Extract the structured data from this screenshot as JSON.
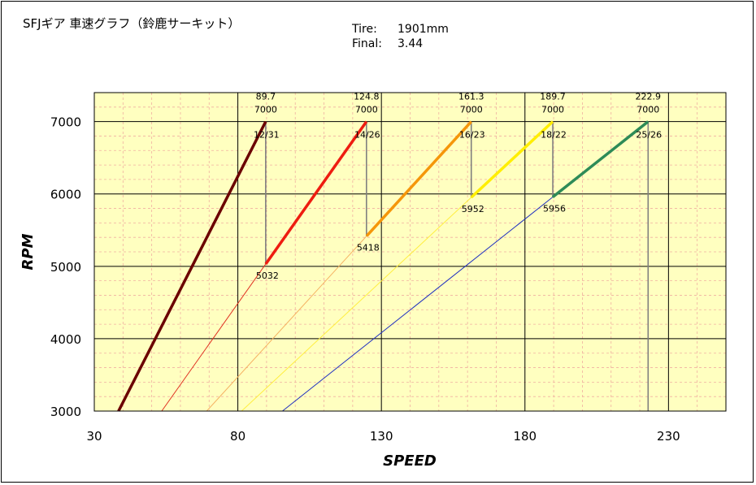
{
  "title": "SFJギア 車速グラフ（鈴鹿サーキット）",
  "info": {
    "tire_label": "Tire:",
    "tire_value": "1901mm",
    "final_label": "Final:",
    "final_value": "3.44"
  },
  "chart_data": {
    "type": "line",
    "xlabel": "SPEED",
    "ylabel": "RPM",
    "xlim": [
      30,
      250
    ],
    "ylim": [
      3000,
      7400
    ],
    "x_ticks": [
      30,
      80,
      130,
      180,
      230
    ],
    "y_ticks": [
      3000,
      4000,
      5000,
      6000,
      7000
    ],
    "grid": true,
    "colors": {
      "plot_bg": "#ffffc0",
      "grid_minor": "#f0b0a0",
      "grid_major": "#000000"
    },
    "gears": [
      {
        "ratio_label": "12/31",
        "top_speed": 89.7,
        "top_rpm": 7000,
        "shift_rpm": null,
        "color": "#6b0000"
      },
      {
        "ratio_label": "14/26",
        "top_speed": 124.8,
        "top_rpm": 7000,
        "shift_rpm": 5032,
        "color": "#ee1c10"
      },
      {
        "ratio_label": "16/23",
        "top_speed": 161.3,
        "top_rpm": 7000,
        "shift_rpm": 5418,
        "color": "#f5960a"
      },
      {
        "ratio_label": "18/22",
        "top_speed": 189.7,
        "top_rpm": 7000,
        "shift_rpm": 5952,
        "color": "#ffee00"
      },
      {
        "ratio_label": "25/26",
        "top_speed": 222.9,
        "top_rpm": 7000,
        "shift_rpm": 5956,
        "color": "#2e8b57"
      }
    ],
    "thin_line_colors": [
      "#6b0000",
      "#e03020",
      "#f5b060",
      "#ffee40",
      "#2030c0"
    ],
    "drop_line_color": "#808080",
    "annotations": {
      "top_speed_labels": [
        "89.7",
        "124.8",
        "161.3",
        "189.7",
        "222.9"
      ],
      "top_rpm_labels": [
        "7000",
        "7000",
        "7000",
        "7000",
        "7000"
      ],
      "shift_rpm_labels": [
        "5032",
        "5418",
        "5952",
        "5956"
      ]
    }
  }
}
